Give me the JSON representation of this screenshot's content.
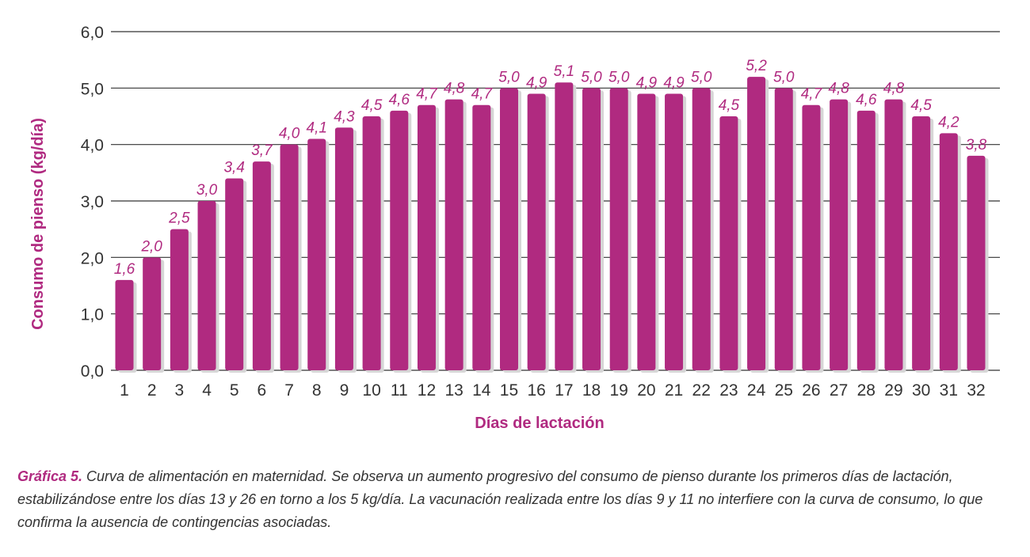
{
  "chart_data": {
    "type": "bar",
    "categories": [
      "1",
      "2",
      "3",
      "4",
      "5",
      "6",
      "7",
      "8",
      "9",
      "10",
      "11",
      "12",
      "13",
      "14",
      "15",
      "16",
      "17",
      "18",
      "19",
      "20",
      "21",
      "22",
      "23",
      "24",
      "25",
      "26",
      "27",
      "28",
      "29",
      "30",
      "31",
      "32"
    ],
    "values": [
      1.6,
      2.0,
      2.5,
      3.0,
      3.4,
      3.7,
      4.0,
      4.1,
      4.3,
      4.5,
      4.6,
      4.7,
      4.8,
      4.7,
      5.0,
      4.9,
      5.1,
      5.0,
      5.0,
      4.9,
      4.9,
      5.0,
      4.5,
      5.2,
      5.0,
      4.7,
      4.8,
      4.6,
      4.8,
      4.5,
      4.2,
      3.8
    ],
    "data_labels": [
      "1,6",
      "2,0",
      "2,5",
      "3,0",
      "3,4",
      "3,7",
      "4,0",
      "4,1",
      "4,3",
      "4,5",
      "4,6",
      "4,7",
      "4,8",
      "4,7",
      "5,0",
      "4,9",
      "5,1",
      "5,0",
      "5,0",
      "4,9",
      "4,9",
      "5,0",
      "4,5",
      "5,2",
      "5,0",
      "4,7",
      "4,8",
      "4,6",
      "4,8",
      "4,5",
      "4,2",
      "3,8"
    ],
    "xlabel": "Días de lactación",
    "ylabel": "Consumo de pienso (kg/día)",
    "ylim": [
      0,
      6
    ],
    "yticks": [
      "0,0",
      "1,0",
      "2,0",
      "3,0",
      "4,0",
      "5,0",
      "6,0"
    ],
    "grid": true,
    "legend": "none",
    "colors": {
      "bar": "#b02a80",
      "shadow": "#d6d6d6",
      "label": "#b02a80",
      "grid": "#333333",
      "tick": "#333333"
    }
  },
  "caption": {
    "label": "Gráfica 5.",
    "text": " Curva de alimentación en maternidad. Se observa un aumento progresivo del consumo de pienso durante los primeros días de lactación, estabilizándose entre los días 13 y 26 en torno a los 5 kg/día. La vacunación realizada entre los días 9 y 11 no interfiere con la curva de consumo, lo que confirma la ausencia de contingencias asociadas."
  }
}
